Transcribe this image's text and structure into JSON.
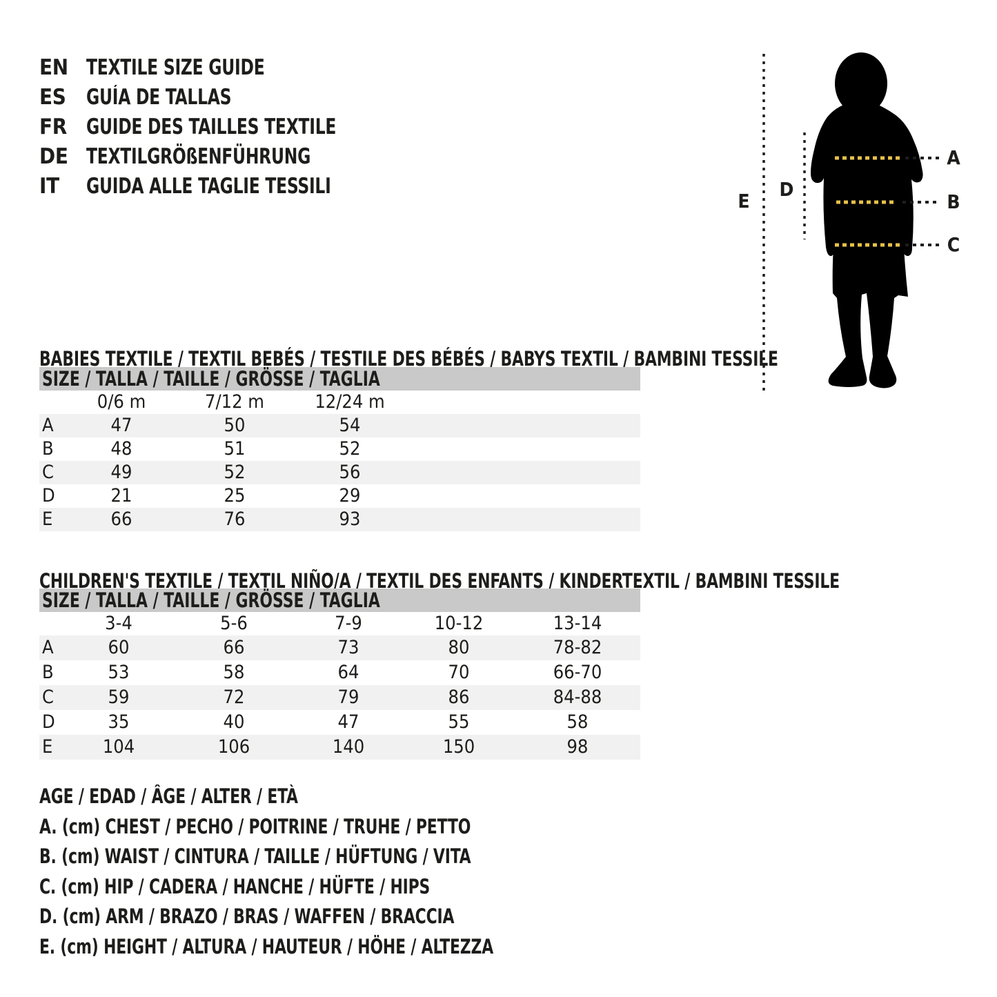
{
  "title_block": {
    "entries": [
      {
        "lang": "EN",
        "text": "TEXTILE SIZE GUIDE"
      },
      {
        "lang": "ES",
        "text": "GUÍA DE TALLAS"
      },
      {
        "lang": "FR",
        "text": "GUIDE DES TAILLES TEXTILE"
      },
      {
        "lang": "DE",
        "text": "TEXTILGRÖßENFÜHRUNG"
      },
      {
        "lang": "IT",
        "text": "GUIDA ALLE TAGLIE TESSILI"
      }
    ]
  },
  "diagram": {
    "labels": {
      "A": "A",
      "B": "B",
      "C": "C",
      "D": "D",
      "E": "E"
    }
  },
  "babies_table": {
    "section_title": "BABIES TEXTILE / TEXTIL BEBÉS / TESTILE DES BÉBÉS / BABYS TEXTIL / BAMBINI TESSILE",
    "header": "SIZE / TALLA / TAILLE / GRÖSSE / TAGLIA",
    "columns": [
      "0/6 m",
      "7/12 m",
      "12/24 m"
    ],
    "rows": [
      {
        "label": "A",
        "values": [
          "47",
          "50",
          "54"
        ]
      },
      {
        "label": "B",
        "values": [
          "48",
          "51",
          "52"
        ]
      },
      {
        "label": "C",
        "values": [
          "49",
          "52",
          "56"
        ]
      },
      {
        "label": "D",
        "values": [
          "21",
          "25",
          "29"
        ]
      },
      {
        "label": "E",
        "values": [
          "66",
          "76",
          "93"
        ]
      }
    ]
  },
  "children_table": {
    "section_title": "CHILDREN'S TEXTILE / TEXTIL NIÑO/A / TEXTIL DES ENFANTS / KINDERTEXTIL / BAMBINI TESSILE",
    "header": "SIZE / TALLA / TAILLE / GRÖSSE / TAGLIA",
    "columns": [
      "3-4",
      "5-6",
      "7-9",
      "10-12",
      "13-14"
    ],
    "rows": [
      {
        "label": "A",
        "values": [
          "60",
          "66",
          "73",
          "80",
          "78-82"
        ]
      },
      {
        "label": "B",
        "values": [
          "53",
          "58",
          "64",
          "70",
          "66-70"
        ]
      },
      {
        "label": "C",
        "values": [
          "59",
          "72",
          "79",
          "86",
          "84-88"
        ]
      },
      {
        "label": "D",
        "values": [
          "35",
          "40",
          "47",
          "55",
          "58"
        ]
      },
      {
        "label": "E",
        "values": [
          "104",
          "106",
          "140",
          "150",
          "98"
        ]
      }
    ]
  },
  "legend": {
    "lines": [
      "AGE / EDAD / ÂGE / ALTER / ETÀ",
      "A. (cm) CHEST / PECHO / POITRINE / TRUHE / PETTO",
      "B. (cm) WAIST / CINTURA / TAILLE / HÜFTUNG / VITA",
      "C. (cm) HIP / CADERA / HANCHE / HÜFTE / HIPS",
      "D. (cm) ARM / BRAZO / BRAS / WAFFEN / BRACCIA",
      "E. (cm) HEIGHT / ALTURA / HAUTEUR / HÖHE / ALTEZZA"
    ]
  },
  "colors": {
    "ink": "#1d1d1b",
    "accent_yellow": "#e8c24a",
    "table_header_bg": "#c9c9c9",
    "row_stripe_bg": "#f1f1f1",
    "silhouette": "#000000"
  }
}
